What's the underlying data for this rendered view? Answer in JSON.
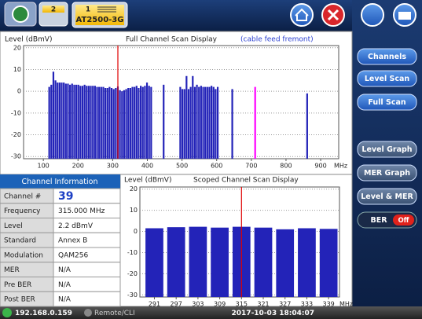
{
  "header": {
    "tab_a": "2",
    "tab_b": "1",
    "device": "AT2500-3G"
  },
  "sidebar": {
    "buttons": [
      "Channels",
      "Level Scan",
      "Full Scan",
      "Level Graph",
      "MER Graph",
      "Level & MER"
    ],
    "toggle": {
      "label": "BER",
      "state": "Off"
    }
  },
  "chart_data": [
    {
      "type": "bar",
      "y_label": "Level (dBmV)",
      "title": "Full Channel Scan Display",
      "subtitle": "(cable feed fremont)",
      "x_unit": "MHz",
      "series": [
        {
          "color": "#2323b8",
          "x": [
            117,
            123,
            129,
            135,
            141,
            147,
            153,
            159,
            165,
            171,
            177,
            183,
            189,
            195,
            201,
            207,
            213,
            219,
            225,
            231,
            237,
            243,
            249,
            255,
            261,
            267,
            273,
            279,
            285,
            291,
            297,
            303,
            309,
            315,
            321,
            327,
            333,
            339,
            345,
            351,
            357,
            363,
            369,
            375,
            381,
            387,
            393,
            399,
            405,
            411,
            447,
            495,
            501,
            507,
            513,
            519,
            525,
            531,
            537,
            543,
            549,
            555,
            561,
            567,
            573,
            579,
            585,
            591,
            597,
            603,
            645,
            861
          ],
          "values": [
            2,
            3,
            9,
            5,
            4,
            4,
            4,
            4,
            3.5,
            3.5,
            3,
            3.5,
            3,
            3,
            3,
            2.5,
            2.5,
            3,
            2.5,
            2.5,
            2.5,
            2.5,
            2.5,
            2,
            2,
            2,
            2,
            1.5,
            1.5,
            2,
            1.5,
            1,
            1.5,
            2.2,
            0.5,
            0,
            0.5,
            1,
            1.5,
            1.5,
            2,
            2,
            2.5,
            1.5,
            2.5,
            2,
            2.5,
            4,
            2.5,
            2,
            3,
            2,
            1,
            1,
            7,
            1,
            2,
            7,
            2,
            3,
            2,
            2.5,
            2,
            2,
            2,
            2,
            2.5,
            2,
            1,
            2,
            1,
            -1
          ]
        },
        {
          "color": "#ff00ff",
          "x": [
            711
          ],
          "values": [
            2
          ]
        }
      ],
      "xlim": [
        43,
        952
      ],
      "xticks": [
        100,
        200,
        300,
        400,
        500,
        600,
        700,
        800,
        900
      ],
      "ylim": [
        -31,
        21
      ],
      "yticks": [
        20,
        10,
        0,
        -10,
        -20,
        -30
      ],
      "grid": true,
      "cursor": 315,
      "cursor_color": "#e00000"
    },
    {
      "type": "bar",
      "y_label": "Level (dBmV)",
      "title": "Scoped Channel Scan Display",
      "x_unit": "MHz",
      "series": [
        {
          "color": "#2323b8",
          "x": [
            291,
            297,
            303,
            309,
            315,
            321,
            327,
            333,
            339
          ],
          "values": [
            1.5,
            2,
            2.2,
            1.8,
            2.2,
            1.8,
            1,
            1.5,
            1.2
          ]
        }
      ],
      "xlim": [
        287,
        342
      ],
      "xticks": [
        291,
        297,
        303,
        309,
        315,
        321,
        327,
        333,
        339
      ],
      "ylim": [
        -31,
        21
      ],
      "yticks": [
        20,
        10,
        0,
        -10,
        -20,
        -30
      ],
      "grid": true,
      "cursor": 315,
      "cursor_color": "#e00000"
    }
  ],
  "channel_info": {
    "title": "Channel Information",
    "rows": [
      [
        "Channel #",
        "39"
      ],
      [
        "Frequency",
        "315.000 MHz"
      ],
      [
        "Level",
        "2.2 dBmV"
      ],
      [
        "Standard",
        "Annex B"
      ],
      [
        "Modulation",
        "QAM256"
      ],
      [
        "MER",
        "N/A"
      ],
      [
        "Pre BER",
        "N/A"
      ],
      [
        "Post BER",
        "N/A"
      ]
    ]
  },
  "status": {
    "ip": "192.168.0.159",
    "mode": "Remote/CLI",
    "datetime": "2017-10-03 18:04:07"
  }
}
